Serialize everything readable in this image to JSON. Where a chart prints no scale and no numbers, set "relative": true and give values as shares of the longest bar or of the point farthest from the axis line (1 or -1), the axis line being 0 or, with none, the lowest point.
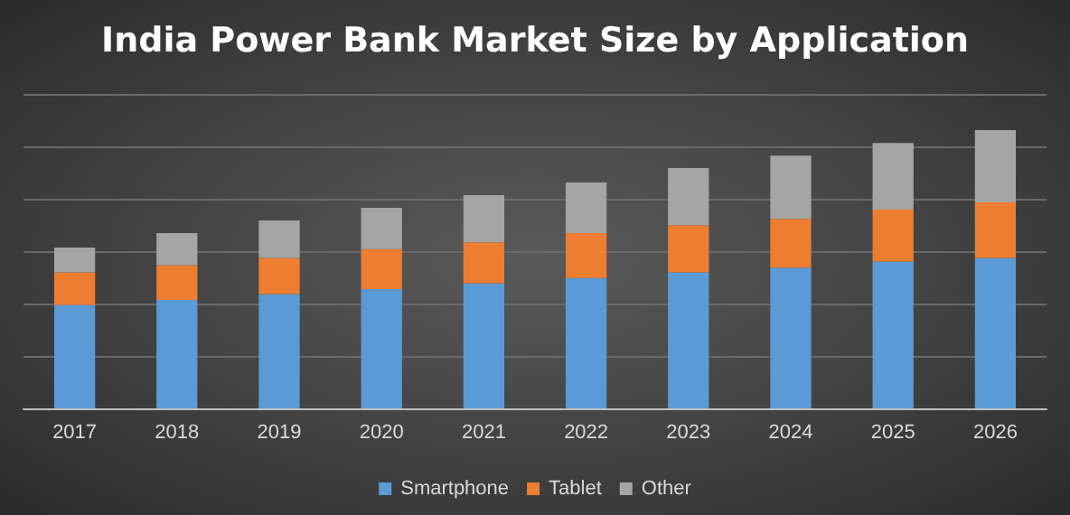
{
  "chart_data": {
    "type": "bar",
    "title": "India Power Bank Market Size by Application",
    "stacked": true,
    "relative": true,
    "grid": "y",
    "legend": "bottom",
    "categories": [
      "2017",
      "2018",
      "2019",
      "2020",
      "2021",
      "2022",
      "2023",
      "2024",
      "2025",
      "2026"
    ],
    "series": [
      {
        "name": "Smartphone",
        "color": "#5b9bd5",
        "values": [
          0.372,
          0.39,
          0.411,
          0.429,
          0.45,
          0.468,
          0.489,
          0.506,
          0.528,
          0.541
        ]
      },
      {
        "name": "Tablet",
        "color": "#ed7d31",
        "values": [
          0.117,
          0.125,
          0.13,
          0.143,
          0.147,
          0.162,
          0.169,
          0.175,
          0.186,
          0.199
        ]
      },
      {
        "name": "Other",
        "color": "#a5a5a5",
        "values": [
          0.089,
          0.115,
          0.134,
          0.149,
          0.169,
          0.182,
          0.206,
          0.227,
          0.24,
          0.26
        ]
      }
    ]
  }
}
